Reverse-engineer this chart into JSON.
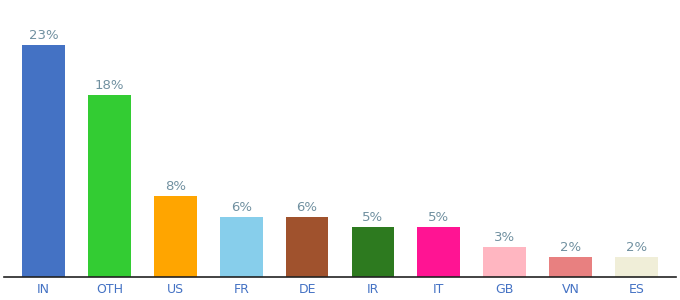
{
  "categories": [
    "IN",
    "OTH",
    "US",
    "FR",
    "DE",
    "IR",
    "IT",
    "GB",
    "VN",
    "ES"
  ],
  "values": [
    23,
    18,
    8,
    6,
    6,
    5,
    5,
    3,
    2,
    2
  ],
  "bar_colors": [
    "#4472c4",
    "#33cc33",
    "#ffa500",
    "#87ceeb",
    "#a0522d",
    "#2d7a1f",
    "#ff1493",
    "#ffb6c1",
    "#e88080",
    "#f0eed8"
  ],
  "ylim": [
    0,
    27
  ],
  "background_color": "#ffffff",
  "label_color": "#7090a0",
  "label_fontsize": 9.5,
  "xtick_color": "#4472c4",
  "xtick_fontsize": 9
}
